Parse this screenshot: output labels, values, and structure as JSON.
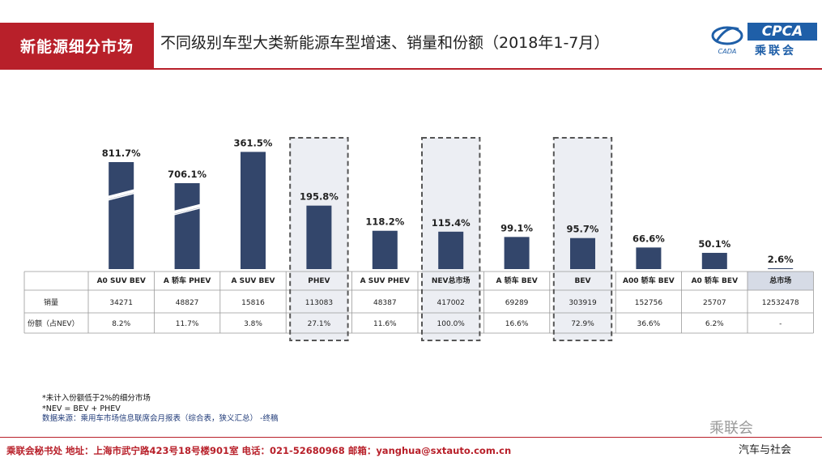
{
  "header": {
    "section_tag": "新能源细分市场",
    "title": "不同级别车型大类新能源车型增速、销量和份额（2018年1-7月）",
    "logo_text": "CPCA",
    "logo_cn": "乘联会",
    "logo_mark_text": "CADA"
  },
  "chart_data": {
    "type": "bar",
    "categories": [
      "A0 SUV BEV",
      "A 轿车 PHEV",
      "A SUV BEV",
      "PHEV",
      "A SUV PHEV",
      "NEV总市场",
      "A 轿车 BEV",
      "BEV",
      "A00 轿车 BEV",
      "A0 轿车 BEV",
      "总市场"
    ],
    "growth_labels": [
      "811.7%",
      "706.1%",
      "361.5%",
      "195.8%",
      "118.2%",
      "115.4%",
      "99.1%",
      "95.7%",
      "66.6%",
      "50.1%",
      "2.6%"
    ],
    "values": [
      811.7,
      706.1,
      361.5,
      195.8,
      118.2,
      115.4,
      99.1,
      95.7,
      66.6,
      50.1,
      2.6
    ],
    "broken_axis": [
      true,
      true,
      false,
      false,
      false,
      false,
      false,
      false,
      false,
      false,
      false
    ],
    "highlighted": [
      "PHEV",
      "NEV总市场",
      "BEV"
    ],
    "total_market_column": "总市场",
    "table": {
      "row_labels": [
        "销量",
        "份额（占NEV）"
      ],
      "sales": [
        "34271",
        "48827",
        "15816",
        "113083",
        "48387",
        "417002",
        "69289",
        "303919",
        "152756",
        "25707",
        "12532478"
      ],
      "share": [
        "8.2%",
        "11.7%",
        "3.8%",
        "27.1%",
        "11.6%",
        "100.0%",
        "16.6%",
        "72.9%",
        "36.6%",
        "6.2%",
        "-"
      ]
    },
    "colors": {
      "bar": "#33466b",
      "highlight_fill": "#eceef3",
      "highlight_border": "#555555",
      "total_header_fill": "#d6dbe6"
    }
  },
  "footnotes": {
    "line1": "*未计入份额低于2%的细分市场",
    "line2": "*NEV = BEV + PHEV",
    "line3": "数据来源：乘用车市场信息联席会月报表（综合表，狭义汇总）  -终稿"
  },
  "footer": {
    "text": "乘联会秘书处   地址：上海市武宁路423号18号楼901室  电话：021-52680968   邮箱：yanghua@sxtauto.com.cn",
    "watermark": "乘联会",
    "watermark2": "汽车与社会"
  }
}
